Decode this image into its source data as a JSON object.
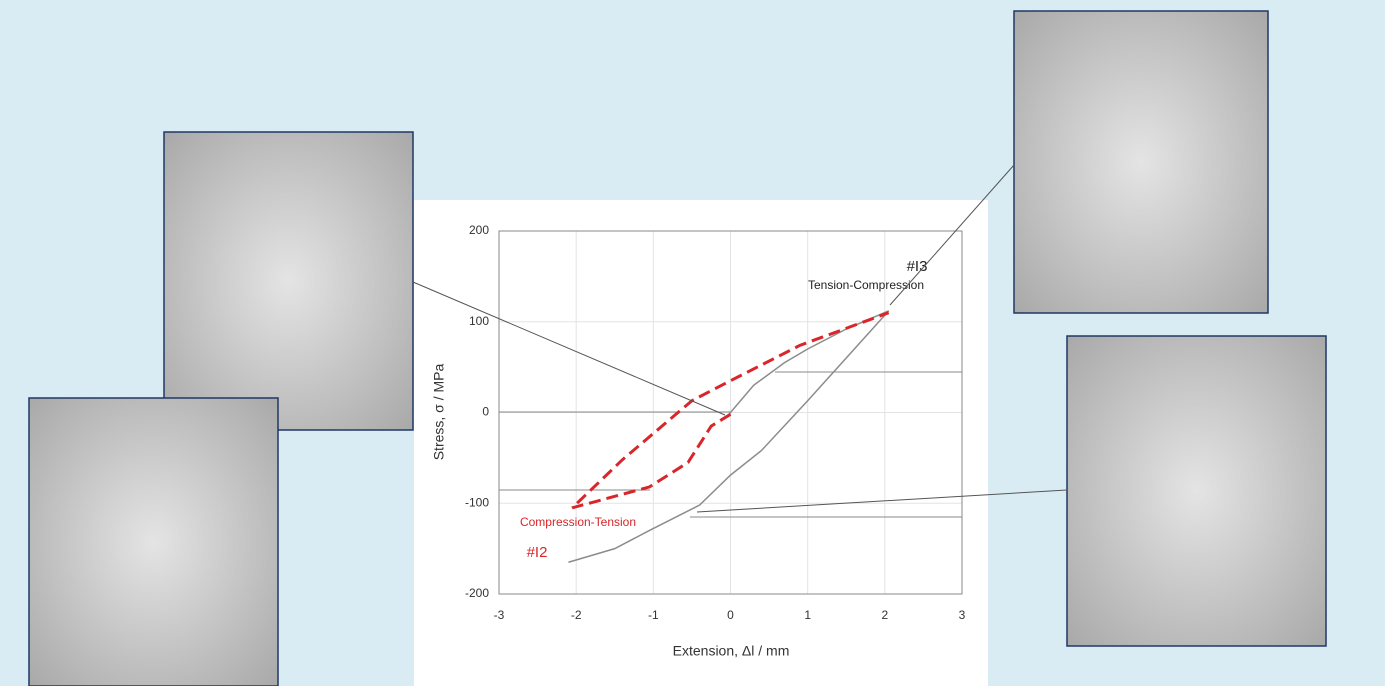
{
  "chart_data": {
    "type": "line",
    "xlabel": "Extension, Δl / mm",
    "ylabel": "Stress, σ / MPa",
    "xlim": [
      -3,
      3
    ],
    "xticks": [
      -3,
      -2,
      -1,
      0,
      1,
      2,
      3
    ],
    "ylim": [
      -200,
      200
    ],
    "yticks": [
      -200,
      -100,
      0,
      100,
      200
    ],
    "grid": true,
    "series": [
      {
        "name": "Tension-Compression",
        "color": "#8c8c8c",
        "dashed": false,
        "x": [
          -0.05,
          0.3,
          0.7,
          1.0,
          1.5,
          2.05,
          1.5,
          1.0,
          0.4,
          0,
          -0.4,
          -1.05,
          -1.5,
          -2.1
        ],
        "values": [
          -5,
          30,
          55,
          70,
          92,
          112,
          60,
          13,
          -42,
          -69,
          -102,
          -130,
          -150,
          -165
        ]
      },
      {
        "name": "Compression-Tension",
        "color": "#d9262a",
        "dashed": true,
        "x": [
          0,
          -0.25,
          -0.55,
          -1.05,
          -1.7,
          -2.05,
          -1.4,
          -0.5,
          0,
          0.9,
          2.05
        ],
        "values": [
          -2,
          -15,
          -55,
          -82,
          -97,
          -105,
          -52,
          13,
          35,
          74,
          110
        ]
      }
    ],
    "annotations": [
      "#I3",
      "#I2"
    ]
  }
}
